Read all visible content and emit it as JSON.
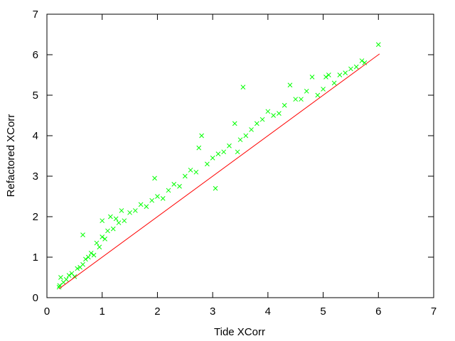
{
  "chart_data": {
    "type": "scatter",
    "xlabel": "Tide XCorr",
    "ylabel": "Refactored XCorr",
    "xlim": [
      0,
      7
    ],
    "ylim": [
      0,
      7
    ],
    "x_ticks": [
      "0",
      "1",
      "2",
      "3",
      "4",
      "5",
      "6",
      "7"
    ],
    "y_ticks": [
      "0",
      "1",
      "2",
      "3",
      "4",
      "5",
      "6",
      "7"
    ],
    "grid": false,
    "legend": "none",
    "marker": "x",
    "colors": {
      "points": "#00ff00",
      "line": "#ff0000",
      "axes": "#000000"
    },
    "reference_line": {
      "x": [
        0.22,
        6.02
      ],
      "y": [
        0.22,
        6.02
      ]
    },
    "series": [
      {
        "points": [
          [
            0.22,
            0.26
          ],
          [
            0.23,
            0.3
          ],
          [
            0.25,
            0.5
          ],
          [
            0.3,
            0.38
          ],
          [
            0.35,
            0.45
          ],
          [
            0.4,
            0.55
          ],
          [
            0.45,
            0.6
          ],
          [
            0.5,
            0.52
          ],
          [
            0.55,
            0.72
          ],
          [
            0.6,
            0.75
          ],
          [
            0.65,
            0.82
          ],
          [
            0.65,
            1.55
          ],
          [
            0.7,
            0.95
          ],
          [
            0.75,
            1.0
          ],
          [
            0.8,
            1.1
          ],
          [
            0.85,
            1.05
          ],
          [
            0.9,
            1.35
          ],
          [
            0.95,
            1.25
          ],
          [
            1.0,
            1.5
          ],
          [
            1.0,
            1.9
          ],
          [
            1.05,
            1.45
          ],
          [
            1.1,
            1.65
          ],
          [
            1.15,
            2.0
          ],
          [
            1.2,
            1.7
          ],
          [
            1.25,
            1.95
          ],
          [
            1.3,
            1.85
          ],
          [
            1.35,
            2.15
          ],
          [
            1.4,
            1.9
          ],
          [
            1.5,
            2.1
          ],
          [
            1.6,
            2.15
          ],
          [
            1.7,
            2.3
          ],
          [
            1.8,
            2.25
          ],
          [
            1.9,
            2.4
          ],
          [
            1.95,
            2.95
          ],
          [
            2.0,
            2.5
          ],
          [
            2.1,
            2.45
          ],
          [
            2.2,
            2.65
          ],
          [
            2.3,
            2.8
          ],
          [
            2.4,
            2.75
          ],
          [
            2.5,
            3.0
          ],
          [
            2.6,
            3.15
          ],
          [
            2.7,
            3.1
          ],
          [
            2.75,
            3.7
          ],
          [
            2.8,
            4.0
          ],
          [
            2.9,
            3.3
          ],
          [
            3.0,
            3.45
          ],
          [
            3.05,
            2.7
          ],
          [
            3.1,
            3.55
          ],
          [
            3.2,
            3.6
          ],
          [
            3.3,
            3.75
          ],
          [
            3.4,
            4.3
          ],
          [
            3.45,
            3.6
          ],
          [
            3.5,
            3.9
          ],
          [
            3.55,
            5.2
          ],
          [
            3.6,
            4.0
          ],
          [
            3.7,
            4.15
          ],
          [
            3.8,
            4.3
          ],
          [
            3.9,
            4.4
          ],
          [
            4.0,
            4.6
          ],
          [
            4.1,
            4.5
          ],
          [
            4.2,
            4.55
          ],
          [
            4.3,
            4.75
          ],
          [
            4.4,
            5.25
          ],
          [
            4.5,
            4.9
          ],
          [
            4.6,
            4.9
          ],
          [
            4.7,
            5.1
          ],
          [
            4.8,
            5.45
          ],
          [
            4.9,
            5.0
          ],
          [
            5.0,
            5.15
          ],
          [
            5.05,
            5.45
          ],
          [
            5.1,
            5.5
          ],
          [
            5.2,
            5.3
          ],
          [
            5.3,
            5.5
          ],
          [
            5.4,
            5.55
          ],
          [
            5.5,
            5.65
          ],
          [
            5.6,
            5.7
          ],
          [
            5.7,
            5.85
          ],
          [
            5.75,
            5.8
          ],
          [
            6.0,
            6.25
          ]
        ]
      }
    ]
  }
}
